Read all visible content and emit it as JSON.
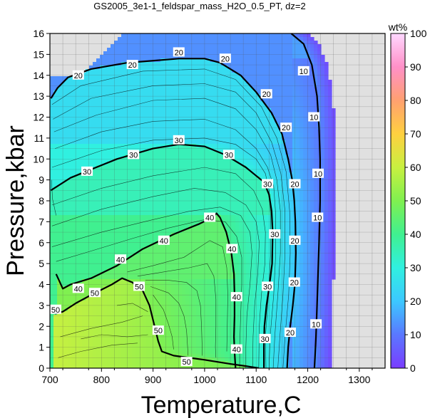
{
  "chart_data": {
    "type": "heatmap",
    "title": "GS2005_3e1-1_feldspar_mass_H2O_0.5_PT, dz=2",
    "xlabel": "Temperature,C",
    "ylabel": "Pressure,kbar",
    "xlim": [
      700,
      1350
    ],
    "ylim": [
      0,
      16
    ],
    "x_ticks": [
      700,
      800,
      900,
      1000,
      1100,
      1200,
      1300
    ],
    "y_ticks": [
      0,
      1,
      2,
      3,
      4,
      5,
      6,
      7,
      8,
      9,
      10,
      11,
      12,
      13,
      14,
      15,
      16
    ],
    "grid": true,
    "no_data_color": "#e0e0e0",
    "colorbar": {
      "label": "wt%",
      "range": [
        0,
        100
      ],
      "ticks": [
        0,
        10,
        20,
        30,
        40,
        50,
        60,
        70,
        80,
        90,
        100
      ],
      "stops": [
        {
          "value": 0,
          "color": "#7a3cff"
        },
        {
          "value": 10,
          "color": "#5a78ff"
        },
        {
          "value": 20,
          "color": "#3cc8ff"
        },
        {
          "value": 30,
          "color": "#30f0e0"
        },
        {
          "value": 40,
          "color": "#40f090"
        },
        {
          "value": 50,
          "color": "#80f050"
        },
        {
          "value": 60,
          "color": "#c8f040"
        },
        {
          "value": 70,
          "color": "#ffd040"
        },
        {
          "value": 80,
          "color": "#ffa070"
        },
        {
          "value": 90,
          "color": "#ff90c8"
        },
        {
          "value": 100,
          "color": "#ffd8ff"
        }
      ]
    },
    "contours": [
      {
        "level": 10,
        "points": [
          [
            1168,
            16
          ],
          [
            1192,
            15.5
          ],
          [
            1208,
            14.5
          ],
          [
            1218,
            13
          ],
          [
            1222,
            11.5
          ],
          [
            1224,
            10
          ],
          [
            1224,
            8
          ],
          [
            1222,
            6
          ],
          [
            1220,
            4.5
          ],
          [
            1218,
            3
          ],
          [
            1216,
            1.5
          ],
          [
            1214,
            0.5
          ],
          [
            1213,
            0
          ]
        ],
        "labels": [
          [
            1192,
            14.2
          ],
          [
            1212,
            12
          ],
          [
            1220,
            9.3
          ],
          [
            1219,
            7.2
          ],
          [
            1216,
            2.1
          ]
        ]
      },
      {
        "level": 20,
        "points": [
          [
            702,
            12.9
          ],
          [
            715,
            13.4
          ],
          [
            735,
            13.9
          ],
          [
            780,
            14.3
          ],
          [
            850,
            14.6
          ],
          [
            950,
            14.8
          ],
          [
            1000,
            14.8
          ],
          [
            1030,
            14.6
          ],
          [
            1070,
            14
          ],
          [
            1100,
            13.2
          ],
          [
            1130,
            12.2
          ],
          [
            1150,
            11.2
          ],
          [
            1162,
            10
          ],
          [
            1170,
            9
          ],
          [
            1174,
            8
          ],
          [
            1176,
            7
          ],
          [
            1177,
            5.5
          ],
          [
            1175,
            4
          ],
          [
            1171,
            3
          ],
          [
            1166,
            2
          ],
          [
            1162,
            1
          ],
          [
            1160,
            0
          ]
        ],
        "labels": [
          [
            755,
            14
          ],
          [
            860,
            14.5
          ],
          [
            950,
            15.1
          ],
          [
            1040,
            14.8
          ],
          [
            1120,
            13.1
          ],
          [
            1158,
            11.5
          ],
          [
            1175,
            8.8
          ],
          [
            1175,
            6.1
          ],
          [
            1174,
            4.1
          ],
          [
            1166,
            1.7
          ]
        ]
      },
      {
        "level": 30,
        "points": [
          [
            702,
            8.5
          ],
          [
            740,
            9.1
          ],
          [
            780,
            9.5
          ],
          [
            830,
            10
          ],
          [
            900,
            10.5
          ],
          [
            950,
            10.7
          ],
          [
            1000,
            10.6
          ],
          [
            1040,
            10.2
          ],
          [
            1080,
            9.6
          ],
          [
            1100,
            9.2
          ],
          [
            1115,
            8.9
          ],
          [
            1125,
            8.3
          ],
          [
            1130,
            7.5
          ],
          [
            1132,
            6.5
          ],
          [
            1131,
            5
          ],
          [
            1126,
            4
          ],
          [
            1120,
            3
          ],
          [
            1116,
            2
          ],
          [
            1115,
            1
          ],
          [
            1115,
            0
          ]
        ],
        "labels": [
          [
            772,
            9.4
          ],
          [
            862,
            10.2
          ],
          [
            950,
            10.9
          ],
          [
            1047,
            10.2
          ],
          [
            1122,
            8.8
          ],
          [
            1136,
            6.4
          ],
          [
            1122,
            3.9
          ],
          [
            1117,
            1.4
          ]
        ]
      },
      {
        "level": 40,
        "points": [
          [
            712,
            4.5
          ],
          [
            725,
            3.8
          ],
          [
            740,
            4
          ],
          [
            780,
            4.3
          ],
          [
            830,
            4.9
          ],
          [
            880,
            5.7
          ],
          [
            940,
            6.4
          ],
          [
            990,
            6.9
          ],
          [
            1015,
            7.2
          ],
          [
            1023,
            7.4
          ],
          [
            1030,
            7.2
          ],
          [
            1042,
            6.5
          ],
          [
            1052,
            5.5
          ],
          [
            1057,
            4.5
          ],
          [
            1058,
            3.5
          ],
          [
            1058,
            2.5
          ],
          [
            1057,
            1.5
          ],
          [
            1058,
            0.8
          ],
          [
            1060,
            0
          ]
        ],
        "labels": [
          [
            755,
            3.8
          ],
          [
            837,
            5.2
          ],
          [
            921,
            6.1
          ],
          [
            1010,
            7.2
          ],
          [
            1053,
            5.7
          ],
          [
            1062,
            3.4
          ],
          [
            1062,
            0.9
          ]
        ]
      },
      {
        "level": 50,
        "points": [
          [
            710,
            2.6
          ],
          [
            725,
            2.7
          ],
          [
            750,
            3.1
          ],
          [
            780,
            3.5
          ],
          [
            820,
            4
          ],
          [
            840,
            4.3
          ],
          [
            860,
            4.1
          ],
          [
            880,
            3.7
          ],
          [
            893,
            3
          ],
          [
            903,
            2
          ],
          [
            910,
            1.3
          ],
          [
            917,
            0.8
          ],
          [
            940,
            0.6
          ],
          [
            1000,
            0.4
          ],
          [
            1050,
            0.2
          ],
          [
            1080,
            0.1
          ],
          [
            1105,
            0
          ]
        ],
        "labels": [
          [
            711,
            2.8
          ],
          [
            787,
            3.6
          ],
          [
            873,
            3.9
          ],
          [
            910,
            1.8
          ],
          [
            965,
            0.3
          ]
        ]
      }
    ],
    "thin_contours": [
      [
        [
          704,
          12.6
        ],
        [
          760,
          13.5
        ],
        [
          880,
          14.2
        ],
        [
          1000,
          14.3
        ],
        [
          1060,
          13.8
        ],
        [
          1110,
          12.5
        ],
        [
          1140,
          11
        ],
        [
          1158,
          9.4
        ],
        [
          1165,
          7.5
        ],
        [
          1166,
          5.5
        ],
        [
          1163,
          3.5
        ],
        [
          1156,
          1.5
        ],
        [
          1152,
          0
        ]
      ],
      [
        [
          706,
          11.9
        ],
        [
          780,
          12.9
        ],
        [
          900,
          13.5
        ],
        [
          1000,
          13.6
        ],
        [
          1060,
          13.2
        ],
        [
          1100,
          12.2
        ],
        [
          1130,
          10.8
        ],
        [
          1148,
          9.3
        ],
        [
          1156,
          7.5
        ],
        [
          1156,
          5.5
        ],
        [
          1152,
          3.5
        ],
        [
          1146,
          1.5
        ],
        [
          1142,
          0
        ]
      ],
      [
        [
          708,
          11.3
        ],
        [
          790,
          12.1
        ],
        [
          900,
          12.8
        ],
        [
          1000,
          12.9
        ],
        [
          1060,
          12.4
        ],
        [
          1100,
          11.4
        ],
        [
          1128,
          10.2
        ],
        [
          1140,
          9
        ],
        [
          1147,
          7.5
        ],
        [
          1147,
          5.5
        ],
        [
          1142,
          3.5
        ],
        [
          1136,
          1.5
        ],
        [
          1133,
          0
        ]
      ],
      [
        [
          710,
          10.5
        ],
        [
          800,
          11.3
        ],
        [
          900,
          11.8
        ],
        [
          1000,
          11.9
        ],
        [
          1060,
          11.4
        ],
        [
          1100,
          10.5
        ],
        [
          1122,
          9.6
        ],
        [
          1134,
          8.7
        ],
        [
          1138,
          7.3
        ],
        [
          1138,
          5.5
        ],
        [
          1134,
          3.5
        ],
        [
          1127,
          1.5
        ],
        [
          1125,
          0
        ]
      ],
      [
        [
          704,
          9.6
        ],
        [
          800,
          10.4
        ],
        [
          900,
          10.9
        ],
        [
          1000,
          11
        ],
        [
          1060,
          10.7
        ],
        [
          1100,
          10
        ],
        [
          1118,
          9.3
        ],
        [
          1125,
          8.5
        ],
        [
          1128,
          7.3
        ],
        [
          1128,
          5.5
        ],
        [
          1124,
          3.5
        ],
        [
          1118,
          1.5
        ],
        [
          1119,
          0
        ]
      ],
      [
        [
          704,
          7.8
        ],
        [
          800,
          8.6
        ],
        [
          900,
          9.2
        ],
        [
          1000,
          9.6
        ],
        [
          1060,
          9.3
        ],
        [
          1095,
          8.5
        ],
        [
          1112,
          7.6
        ],
        [
          1118,
          6.5
        ],
        [
          1117,
          5
        ],
        [
          1110,
          3.5
        ],
        [
          1106,
          2
        ],
        [
          1105,
          0
        ]
      ],
      [
        [
          704,
          6.8
        ],
        [
          800,
          7.6
        ],
        [
          900,
          8.2
        ],
        [
          980,
          8.6
        ],
        [
          1040,
          8.4
        ],
        [
          1080,
          7.8
        ],
        [
          1100,
          7
        ],
        [
          1106,
          6
        ],
        [
          1103,
          4.5
        ],
        [
          1097,
          3
        ],
        [
          1094,
          1.5
        ],
        [
          1093,
          0
        ]
      ],
      [
        [
          704,
          5.8
        ],
        [
          800,
          6.5
        ],
        [
          900,
          7.1
        ],
        [
          970,
          7.5
        ],
        [
          1030,
          7.7
        ],
        [
          1070,
          7.3
        ],
        [
          1088,
          6.5
        ],
        [
          1092,
          5.5
        ],
        [
          1088,
          4
        ],
        [
          1082,
          2.5
        ],
        [
          1080,
          1
        ],
        [
          1080,
          0
        ]
      ],
      [
        [
          712,
          5.1
        ],
        [
          780,
          5.6
        ],
        [
          860,
          6.2
        ],
        [
          930,
          6.7
        ],
        [
          1000,
          7.1
        ],
        [
          1040,
          7
        ],
        [
          1062,
          6.3
        ],
        [
          1072,
          5.3
        ],
        [
          1072,
          4
        ],
        [
          1070,
          2.5
        ],
        [
          1068,
          1
        ],
        [
          1068,
          0
        ]
      ],
      [
        [
          850,
          4.6
        ],
        [
          900,
          4.9
        ],
        [
          960,
          5.3
        ],
        [
          1010,
          6.1
        ],
        [
          1035,
          5.8
        ],
        [
          1043,
          4.8
        ],
        [
          1045,
          3.5
        ],
        [
          1044,
          2
        ],
        [
          1043,
          0.8
        ]
      ],
      [
        [
          870,
          4.4
        ],
        [
          920,
          4.6
        ],
        [
          970,
          4.8
        ],
        [
          1005,
          5
        ],
        [
          1018,
          4.4
        ],
        [
          1022,
          3.3
        ],
        [
          1022,
          2
        ],
        [
          1021,
          1
        ],
        [
          1022,
          0.5
        ]
      ],
      [
        [
          885,
          4.2
        ],
        [
          930,
          4.2
        ],
        [
          965,
          4.1
        ],
        [
          985,
          3.7
        ],
        [
          992,
          3
        ],
        [
          994,
          2
        ],
        [
          995,
          1.2
        ],
        [
          995,
          0.6
        ]
      ],
      [
        [
          895,
          3.9
        ],
        [
          930,
          3.6
        ],
        [
          950,
          3.1
        ],
        [
          960,
          2.5
        ],
        [
          965,
          1.8
        ],
        [
          967,
          1
        ],
        [
          968,
          0.6
        ]
      ],
      [
        [
          900,
          3.5
        ],
        [
          920,
          2.8
        ],
        [
          930,
          2.1
        ],
        [
          937,
          1.5
        ],
        [
          940,
          0.9
        ]
      ],
      [
        [
          712,
          7.3
        ],
        [
          705,
          8.1
        ],
        [
          703,
          9
        ]
      ],
      [
        [
          720,
          1.5
        ],
        [
          780,
          1.9
        ],
        [
          840,
          2.2
        ],
        [
          880,
          2.5
        ]
      ],
      [
        [
          716,
          0.5
        ],
        [
          760,
          0.8
        ],
        [
          820,
          1.1
        ],
        [
          870,
          1.2
        ]
      ],
      [
        [
          830,
          3
        ],
        [
          860,
          3.1
        ],
        [
          890,
          2.7
        ]
      ],
      [
        [
          760,
          1.4
        ],
        [
          800,
          1.6
        ],
        [
          850,
          1.5
        ],
        [
          890,
          1.6
        ]
      ]
    ]
  }
}
